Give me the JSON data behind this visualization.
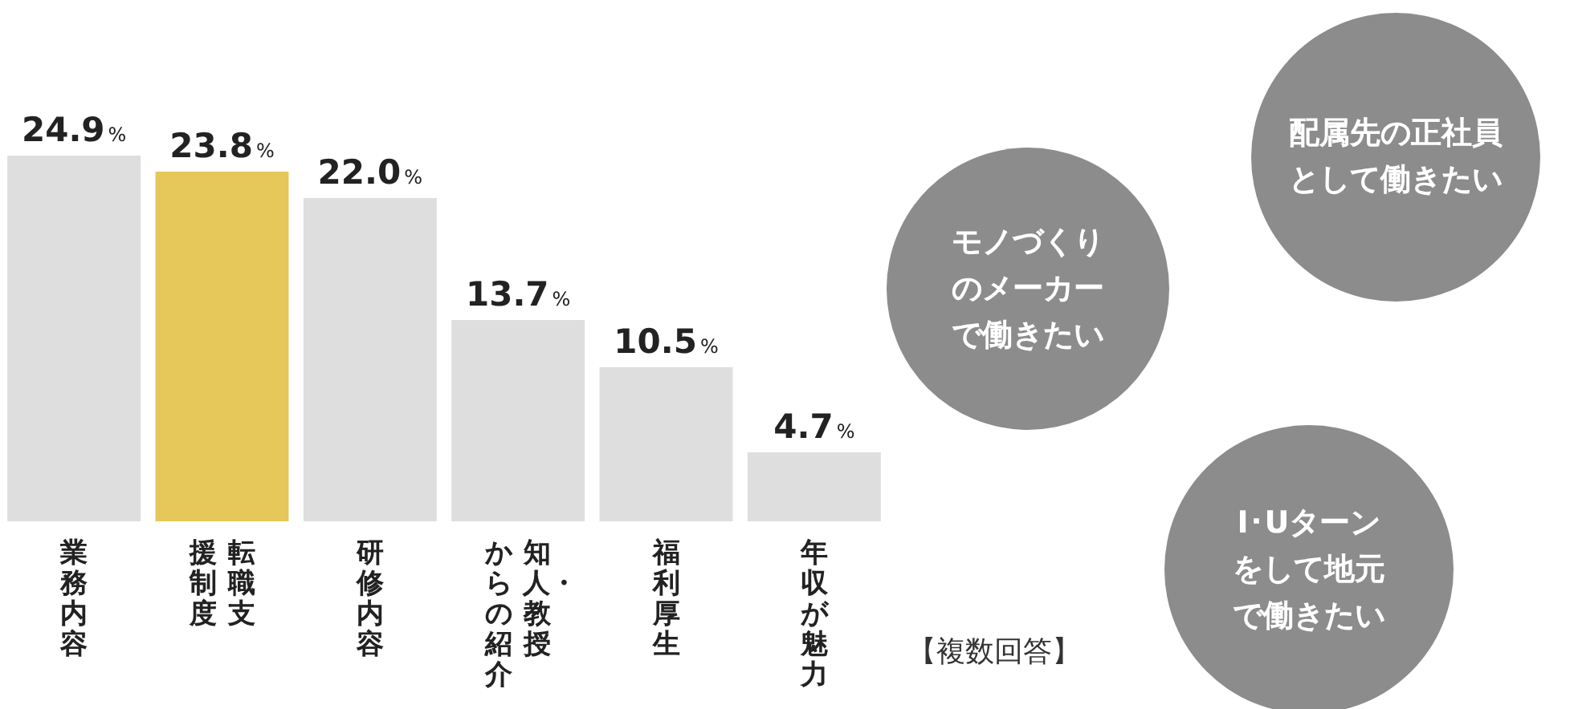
{
  "chart_data": {
    "type": "bar",
    "categories": [
      "業務内容",
      "転職支援制度",
      "研修内容",
      "知人・教授からの紹介",
      "福利厚生",
      "年収が魅力"
    ],
    "values": [
      24.9,
      23.8,
      22.0,
      13.7,
      10.5,
      4.7
    ],
    "colors": [
      "#dedede",
      "#e5c75a",
      "#dedede",
      "#dedede",
      "#dedede",
      "#dedede"
    ],
    "value_labels": [
      "24.9%",
      "23.8%",
      "22.0%",
      "13.7%",
      "10.5%",
      "4.7%"
    ],
    "tick_labels": "x",
    "legend": false,
    "annotations": [
      "モノづくりのメーカーで働きたい",
      "配属先の正社員として働きたい",
      "I･Uターンをして地元で働きたい",
      "【複数回答】"
    ]
  }
}
